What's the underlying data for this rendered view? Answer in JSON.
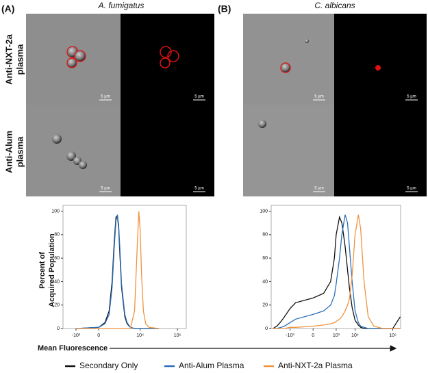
{
  "panels": [
    {
      "label": "(A)",
      "title": "A. fumigatus"
    },
    {
      "label": "(B)",
      "title": "C. albicans"
    }
  ],
  "row_labels": [
    [
      "Anti-NXT-2a",
      "plasma"
    ],
    [
      "Anti-Alum",
      "plasma"
    ]
  ],
  "scale_bar_label": "5 µm",
  "y_axis_label": [
    "Percent of",
    "Acquired Population"
  ],
  "x_axis_label": "Mean Fluorescence",
  "chart_data": [
    {
      "type": "line",
      "xscale": "biexponential",
      "x": [
        -1000,
        0,
        100,
        200,
        300,
        400,
        500,
        600,
        700,
        800,
        1000,
        1500,
        2000,
        3000,
        5000,
        7000,
        8500,
        10000,
        12000,
        15000,
        20000,
        30000,
        100000
      ],
      "series": [
        {
          "name": "Secondary Only",
          "color": "#111111",
          "values": [
            0,
            1,
            5,
            15,
            40,
            75,
            95,
            96,
            85,
            65,
            35,
            10,
            4,
            1,
            0,
            0,
            0,
            0,
            0,
            0,
            0,
            0,
            0
          ]
        },
        {
          "name": "Anti-Alum Plasma",
          "color": "#2a6ebb",
          "values": [
            0,
            1,
            4,
            12,
            35,
            70,
            92,
            97,
            88,
            70,
            38,
            12,
            5,
            1,
            0,
            0,
            0,
            0,
            0,
            0,
            0,
            0,
            0
          ]
        },
        {
          "name": "Anti-NXT-2a Plasma",
          "color": "#f0923c",
          "values": [
            0,
            0,
            0,
            0,
            0,
            0,
            0,
            0,
            0,
            0,
            0,
            0,
            0,
            0,
            15,
            70,
            100,
            85,
            45,
            15,
            4,
            1,
            0
          ]
        }
      ],
      "xlim": [
        -5000,
        3000000
      ],
      "xticks": [
        {
          "value": -1000,
          "label": "-10³"
        },
        0,
        {
          "value": 10000,
          "label": "10⁴"
        },
        {
          "value": 1000000,
          "label": "10⁶"
        }
      ],
      "ylim": [
        0,
        105
      ],
      "yticks": [
        0,
        20,
        40,
        60,
        80,
        100
      ]
    },
    {
      "type": "line",
      "xscale": "biexponential",
      "x": [
        -8000,
        -5000,
        -3000,
        -2000,
        -1000,
        -500,
        0,
        200,
        500,
        800,
        1000,
        1500,
        2000,
        3000,
        4000,
        5000,
        7000,
        10000,
        15000,
        20000,
        30000,
        50000,
        100000,
        300000,
        1000000,
        2500000
      ],
      "series": [
        {
          "name": "Secondary Only",
          "color": "#111111",
          "values": [
            0,
            2,
            6,
            10,
            17,
            22,
            26,
            30,
            40,
            60,
            80,
            95,
            90,
            70,
            50,
            35,
            18,
            7,
            3,
            1,
            0,
            0,
            0,
            0,
            0,
            10
          ]
        },
        {
          "name": "Anti-Alum Plasma",
          "color": "#2a6ebb",
          "values": [
            0,
            0,
            1,
            2,
            5,
            8,
            12,
            15,
            20,
            28,
            38,
            60,
            80,
            97,
            90,
            70,
            40,
            15,
            5,
            2,
            1,
            0,
            0,
            0,
            0,
            0
          ]
        },
        {
          "name": "Anti-NXT-2a Plasma",
          "color": "#f0923c",
          "values": [
            0,
            0,
            0,
            0,
            1,
            1,
            2,
            3,
            4,
            5,
            6,
            8,
            10,
            15,
            20,
            25,
            45,
            80,
            97,
            85,
            40,
            10,
            2,
            0,
            0,
            0
          ]
        }
      ],
      "xlim": [
        -10000,
        2600000
      ],
      "xticks": [
        {
          "value": -1000,
          "label": "-10³"
        },
        0,
        {
          "value": 1000,
          "label": "10³"
        },
        {
          "value": 10000,
          "label": "10⁴"
        },
        {
          "value": 1000000,
          "label": "10⁶"
        }
      ],
      "ylim": [
        0,
        105
      ],
      "yticks": [
        0,
        20,
        40,
        60,
        80,
        100
      ]
    }
  ]
}
